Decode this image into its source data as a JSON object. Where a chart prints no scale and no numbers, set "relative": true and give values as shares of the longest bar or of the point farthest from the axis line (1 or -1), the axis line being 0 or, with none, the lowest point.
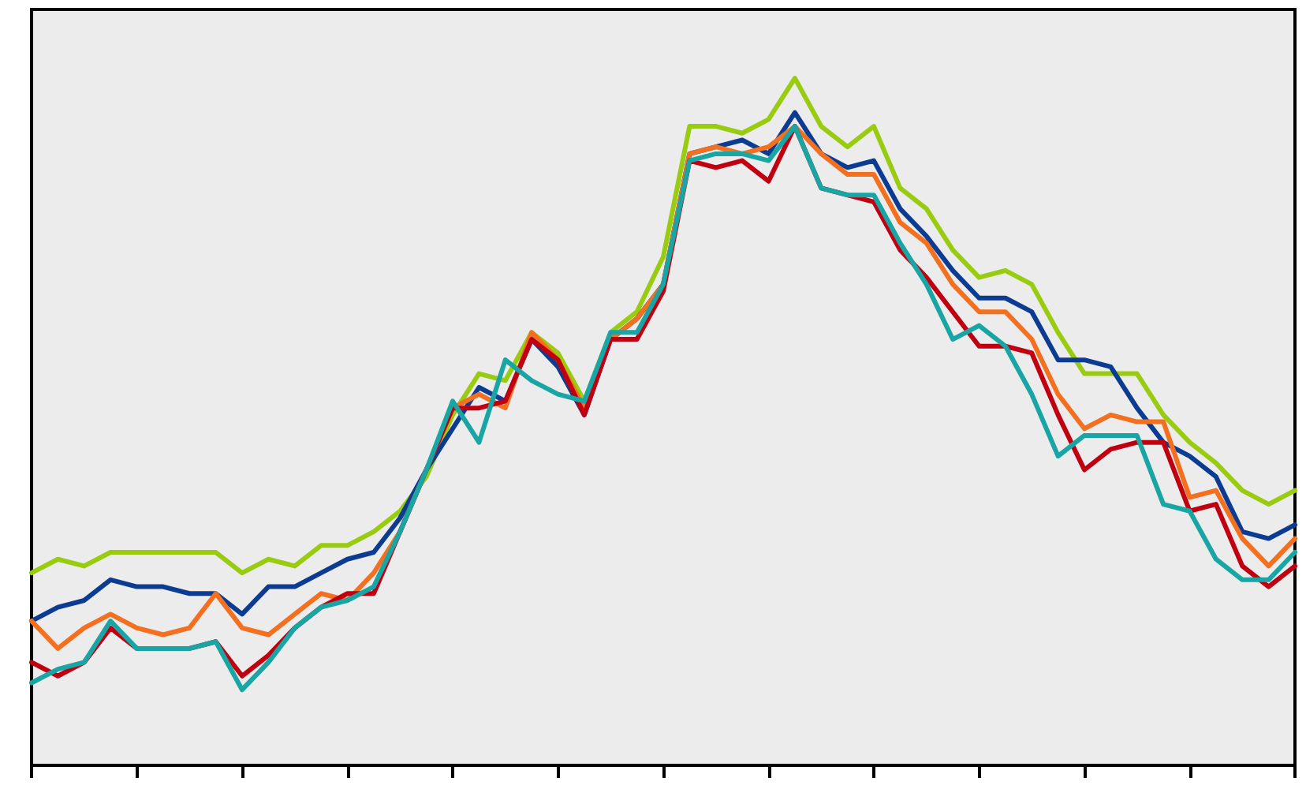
{
  "chart_data": {
    "type": "line",
    "relative": true,
    "grid": false,
    "marker": "none",
    "line_style": "solid",
    "categories": [
      null,
      null,
      null,
      null,
      null,
      null,
      null,
      null,
      null,
      null,
      null,
      null,
      null,
      null,
      null,
      null,
      null,
      null,
      null,
      null,
      null,
      null,
      null,
      null,
      null,
      null,
      null,
      null,
      null,
      null,
      null,
      null,
      null,
      null,
      null,
      null,
      null,
      null,
      null,
      null,
      null,
      null,
      null,
      null,
      null,
      null,
      null,
      null,
      null
    ],
    "series": [
      {
        "color": "#99cc11",
        "values": [
          0.28,
          0.3,
          0.29,
          0.31,
          0.31,
          0.31,
          0.31,
          0.31,
          0.28,
          0.3,
          0.29,
          0.32,
          0.32,
          0.34,
          0.37,
          0.42,
          0.51,
          0.57,
          0.56,
          0.63,
          0.6,
          0.53,
          0.63,
          0.66,
          0.74,
          0.93,
          0.93,
          0.92,
          0.94,
          1.0,
          0.93,
          0.9,
          0.93,
          0.84,
          0.81,
          0.75,
          0.71,
          0.72,
          0.7,
          0.63,
          0.57,
          0.57,
          0.57,
          0.51,
          0.47,
          0.44,
          0.4,
          0.38,
          0.4
        ]
      },
      {
        "color": "#0c3c92",
        "values": [
          0.21,
          0.23,
          0.24,
          0.27,
          0.26,
          0.26,
          0.25,
          0.25,
          0.22,
          0.26,
          0.26,
          0.28,
          0.3,
          0.31,
          0.36,
          0.43,
          0.49,
          0.55,
          0.53,
          0.62,
          0.58,
          0.51,
          0.62,
          0.65,
          0.7,
          0.89,
          0.9,
          0.91,
          0.89,
          0.95,
          0.89,
          0.87,
          0.88,
          0.81,
          0.77,
          0.72,
          0.68,
          0.68,
          0.66,
          0.59,
          0.59,
          0.58,
          0.52,
          0.47,
          0.45,
          0.42,
          0.34,
          0.33,
          0.35
        ]
      },
      {
        "color": "#f27020",
        "values": [
          0.21,
          0.17,
          0.2,
          0.22,
          0.2,
          0.19,
          0.2,
          0.25,
          0.2,
          0.19,
          0.22,
          0.25,
          0.24,
          0.28,
          0.34,
          0.43,
          0.52,
          0.54,
          0.52,
          0.63,
          0.59,
          0.52,
          0.62,
          0.65,
          0.7,
          0.89,
          0.9,
          0.89,
          0.9,
          0.93,
          0.89,
          0.86,
          0.86,
          0.79,
          0.76,
          0.7,
          0.66,
          0.66,
          0.62,
          0.54,
          0.49,
          0.51,
          0.5,
          0.5,
          0.39,
          0.4,
          0.33,
          0.29,
          0.33
        ]
      },
      {
        "color": "#c00010",
        "values": [
          0.15,
          0.13,
          0.15,
          0.2,
          0.17,
          0.17,
          0.17,
          0.18,
          0.13,
          0.16,
          0.2,
          0.23,
          0.25,
          0.25,
          0.34,
          0.43,
          0.52,
          0.52,
          0.53,
          0.62,
          0.59,
          0.51,
          0.62,
          0.62,
          0.69,
          0.88,
          0.87,
          0.88,
          0.85,
          0.93,
          0.84,
          0.83,
          0.82,
          0.75,
          0.71,
          0.66,
          0.61,
          0.61,
          0.6,
          0.51,
          0.43,
          0.46,
          0.47,
          0.47,
          0.37,
          0.38,
          0.29,
          0.26,
          0.29
        ]
      },
      {
        "color": "#1aa5a5",
        "values": [
          0.12,
          0.14,
          0.15,
          0.21,
          0.17,
          0.17,
          0.17,
          0.18,
          0.11,
          0.15,
          0.2,
          0.23,
          0.24,
          0.26,
          0.34,
          0.43,
          0.53,
          0.47,
          0.59,
          0.56,
          0.54,
          0.53,
          0.63,
          0.63,
          0.7,
          0.88,
          0.89,
          0.89,
          0.88,
          0.93,
          0.84,
          0.83,
          0.83,
          0.76,
          0.7,
          0.62,
          0.64,
          0.61,
          0.54,
          0.45,
          0.48,
          0.48,
          0.48,
          0.38,
          0.37,
          0.3,
          0.27,
          0.27,
          0.31
        ]
      }
    ]
  }
}
